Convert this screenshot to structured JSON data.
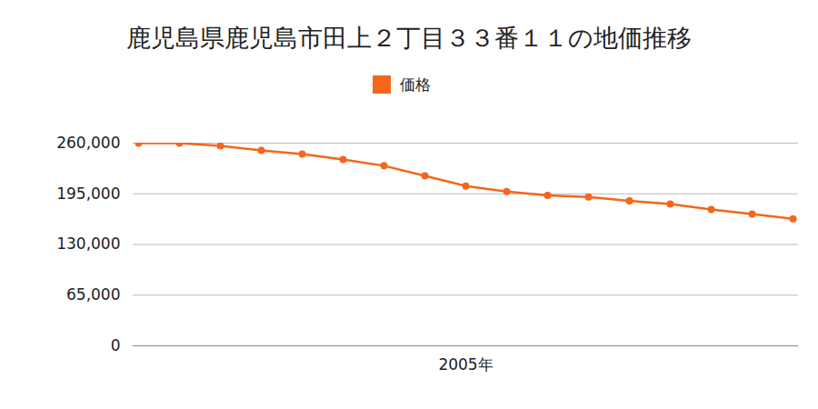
{
  "chart_data": {
    "type": "line",
    "title": "鹿児島県鹿児島市田上２丁目３３番１１の地価推移",
    "categories": [
      null,
      null,
      null,
      null,
      null,
      null,
      null,
      null,
      "2005年",
      null,
      null,
      null,
      null,
      null,
      null,
      null,
      null
    ],
    "series": [
      {
        "name": "価格",
        "color": "#f4661b",
        "values": [
          260000,
          260000,
          256500,
          250700,
          246000,
          239000,
          231000,
          218000,
          205000,
          198000,
          193000,
          191000,
          186000,
          182000,
          175000,
          169000,
          163000
        ]
      }
    ],
    "ylim": [
      0,
      260000
    ],
    "yticks": [
      0,
      {
        "value": 65000,
        "label": "65,000"
      },
      {
        "value": 130000,
        "label": "130,000"
      },
      {
        "value": 195000,
        "label": "195,000"
      },
      {
        "value": 260000,
        "label": "260,000"
      }
    ],
    "grid": true,
    "legend": "top",
    "marker": "circle"
  }
}
